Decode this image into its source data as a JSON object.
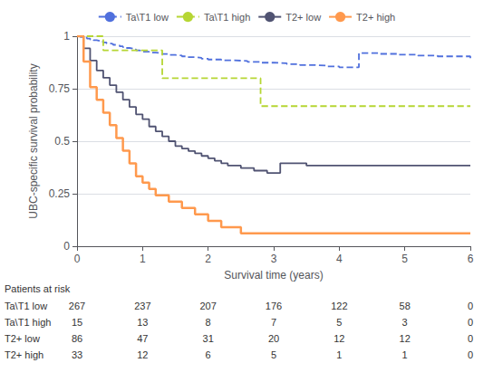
{
  "chart_data": {
    "type": "line",
    "title": "",
    "xlabel": "Survival time (years)",
    "ylabel": "UBC-specific survival probability",
    "xlim": [
      0,
      6
    ],
    "ylim": [
      0,
      1
    ],
    "xticks": [
      0,
      1,
      2,
      3,
      4,
      5,
      6
    ],
    "yticks": [
      0,
      0.25,
      0.5,
      0.75,
      1
    ],
    "grid": true,
    "legend": "top",
    "series": [
      {
        "name": "Ta\\T1 low",
        "line_style": "dashed",
        "x": [
          0,
          0.05,
          0.1,
          0.15,
          0.2,
          0.25,
          0.3,
          0.35,
          0.4,
          0.45,
          0.5,
          0.55,
          0.6,
          0.65,
          0.7,
          0.75,
          0.8,
          0.85,
          0.9,
          0.95,
          1.0,
          1.1,
          1.2,
          1.3,
          1.4,
          1.5,
          1.6,
          1.7,
          1.8,
          1.9,
          2.0,
          2.2,
          2.4,
          2.6,
          2.8,
          3.0,
          3.2,
          3.4,
          3.6,
          3.8,
          4.0,
          4.3,
          4.6,
          4.9,
          5.2,
          5.5,
          6.0
        ],
        "values": [
          1.0,
          0.996,
          0.993,
          0.989,
          0.985,
          0.981,
          0.978,
          0.974,
          0.97,
          0.966,
          0.963,
          0.959,
          0.956,
          0.952,
          0.948,
          0.944,
          0.941,
          0.937,
          0.933,
          0.93,
          0.926,
          0.922,
          0.919,
          0.915,
          0.911,
          0.908,
          0.904,
          0.9,
          0.897,
          0.893,
          0.889,
          0.885,
          0.882,
          0.878,
          0.874,
          0.871,
          0.867,
          0.863,
          0.86,
          0.856,
          0.852,
          0.92,
          0.916,
          0.912,
          0.908,
          0.904,
          0.896
        ]
      },
      {
        "name": "Ta\\T1 high",
        "line_style": "dashed",
        "x": [
          0,
          0.4,
          0.9,
          1.3,
          1.5,
          2.8,
          6.0
        ],
        "values": [
          1.0,
          0.933,
          0.933,
          0.8,
          0.8,
          0.667,
          0.667
        ]
      },
      {
        "name": "T2+ low",
        "line_style": "solid",
        "x": [
          0,
          0.1,
          0.2,
          0.3,
          0.4,
          0.5,
          0.6,
          0.7,
          0.8,
          0.9,
          1.0,
          1.1,
          1.2,
          1.3,
          1.4,
          1.5,
          1.6,
          1.7,
          1.8,
          1.9,
          2.0,
          2.1,
          2.2,
          2.3,
          2.5,
          2.7,
          2.9,
          3.1,
          3.3,
          3.5,
          6.0
        ],
        "values": [
          1.0,
          0.942,
          0.884,
          0.837,
          0.802,
          0.767,
          0.733,
          0.698,
          0.663,
          0.628,
          0.605,
          0.57,
          0.547,
          0.523,
          0.5,
          0.477,
          0.465,
          0.453,
          0.442,
          0.43,
          0.419,
          0.407,
          0.395,
          0.384,
          0.372,
          0.36,
          0.349,
          0.395,
          0.395,
          0.384,
          0.384
        ]
      },
      {
        "name": "T2+ high",
        "line_style": "solid",
        "x": [
          0,
          0.1,
          0.2,
          0.3,
          0.4,
          0.5,
          0.6,
          0.7,
          0.8,
          0.9,
          1.0,
          1.1,
          1.2,
          1.4,
          1.6,
          1.8,
          2.0,
          2.2,
          2.5,
          2.8,
          3.0,
          3.4,
          3.6,
          6.0
        ],
        "values": [
          1.0,
          0.879,
          0.758,
          0.697,
          0.636,
          0.576,
          0.515,
          0.455,
          0.394,
          0.333,
          0.303,
          0.273,
          0.242,
          0.212,
          0.182,
          0.152,
          0.121,
          0.091,
          0.061,
          0.061,
          0.061,
          0.061,
          0.061,
          0.061
        ]
      }
    ],
    "risk_table": {
      "title": "Patients at risk",
      "times": [
        0,
        1,
        2,
        3,
        4,
        5,
        6
      ],
      "rows": [
        {
          "label": "Ta\\T1 low",
          "values": [
            267,
            237,
            207,
            176,
            122,
            58,
            0
          ]
        },
        {
          "label": "Ta\\T1 high",
          "values": [
            15,
            13,
            8,
            7,
            5,
            3,
            0
          ]
        },
        {
          "label": "T2+ low",
          "values": [
            86,
            47,
            31,
            20,
            12,
            12,
            0
          ]
        },
        {
          "label": "T2+ high",
          "values": [
            33,
            12,
            6,
            5,
            1,
            1,
            0
          ]
        }
      ]
    }
  }
}
